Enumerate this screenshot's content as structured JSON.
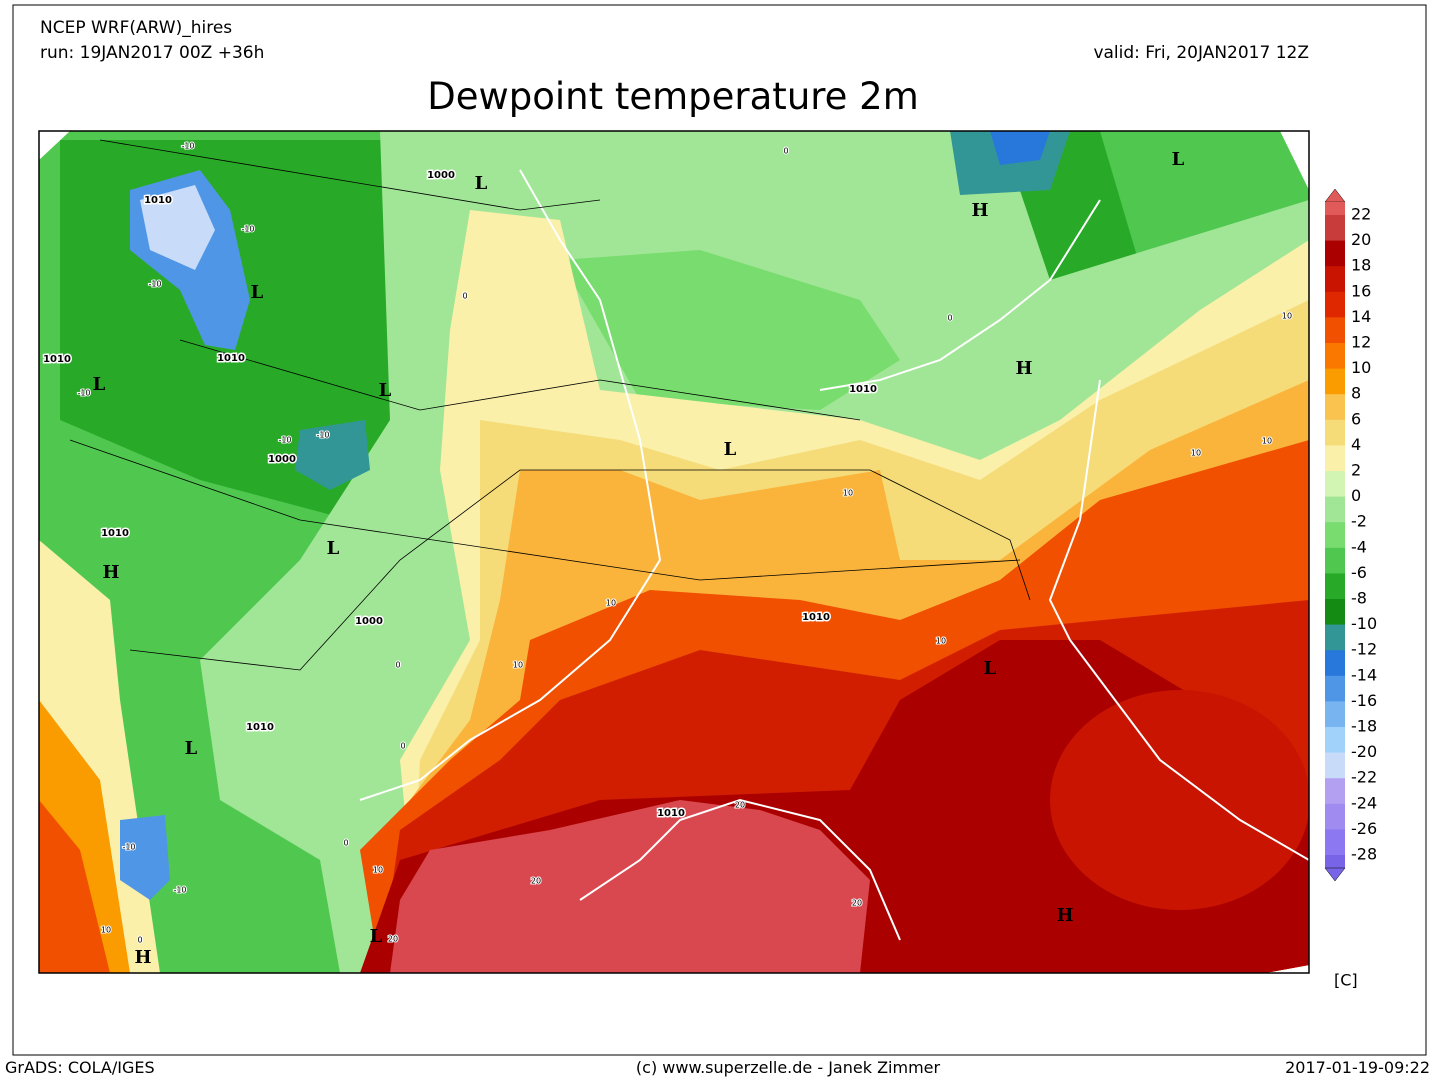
{
  "header": {
    "model": "NCEP WRF(ARW)_hires",
    "run": "run: 19JAN2017 00Z +36h",
    "valid": "valid: Fri, 20JAN2017 12Z",
    "title": "Dewpoint temperature 2m"
  },
  "map": {
    "pressure_centers": [
      "L",
      "H",
      "L",
      "L",
      "L",
      "L",
      "H",
      "L",
      "L",
      "H",
      "L",
      "L",
      "H",
      "L",
      "H"
    ],
    "isobar_labels": [
      "1000",
      "1000",
      "1000",
      "1010",
      "1010",
      "1010",
      "1010",
      "1010",
      "1010",
      "1010",
      "1010"
    ],
    "contour_labels": [
      "-10",
      "-10",
      "-10",
      "-10",
      "-10",
      "-10",
      "-10",
      "-10",
      "0",
      "0",
      "0",
      "0",
      "0",
      "0",
      "0",
      "10",
      "10",
      "10",
      "10",
      "10",
      "10",
      "10",
      "10",
      "10",
      "20",
      "20",
      "20",
      "20"
    ]
  },
  "colorbar": {
    "labels": [
      22,
      20,
      18,
      16,
      14,
      12,
      10,
      8,
      6,
      4,
      2,
      0,
      -2,
      -4,
      -6,
      -8,
      -10,
      -12,
      -14,
      -16,
      -18,
      -20,
      -22,
      -24,
      -26,
      -28
    ],
    "colors": [
      "#e05a5a",
      "#c83c3c",
      "#aa0000",
      "#c81400",
      "#e02800",
      "#f05000",
      "#fa7800",
      "#fa9b00",
      "#fac350",
      "#f5dc78",
      "#faf0aa",
      "#d2f5b4",
      "#a0e696",
      "#78dc6e",
      "#50c850",
      "#28aa28",
      "#148c14",
      "#329696",
      "#2878dc",
      "#5096e6",
      "#78b4f0",
      "#a0d2fa",
      "#c8dcfa",
      "#b4a0f0",
      "#a08cf0",
      "#8c78f0",
      "#7864e6"
    ],
    "unit": "[C]"
  },
  "footer": {
    "left": "GrADS: COLA/IGES",
    "center": "(c) www.superzelle.de - Janek Zimmer",
    "right": "2017-01-19-09:22"
  }
}
